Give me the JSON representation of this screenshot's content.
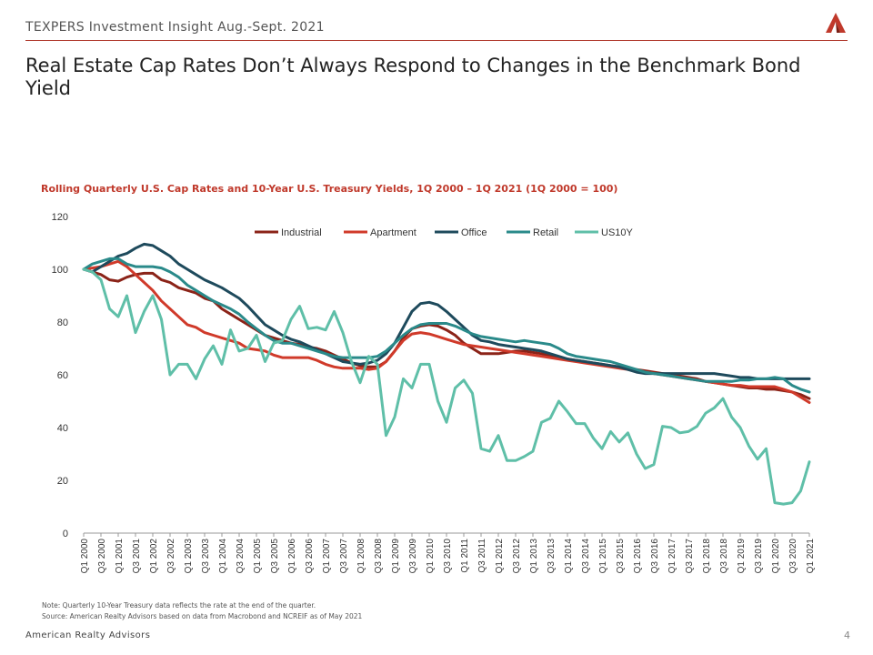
{
  "header": {
    "title": "TEXPERS Investment Insight Aug.-Sept. 2021",
    "logo_icon": "red-a-logo-icon",
    "accent_color": "#b03a2e"
  },
  "slide": {
    "title": "Real Estate Cap Rates Don’t Always Respond to Changes in the Benchmark Bond Yield"
  },
  "chart_data": {
    "type": "line",
    "title": "Rolling Quarterly U.S. Cap Rates and 10-Year U.S. Treasury Yields, 1Q 2000 – 1Q 2021 (1Q 2000 = 100)",
    "xlabel": "",
    "ylabel": "",
    "ylim": [
      0,
      120
    ],
    "yticks": [
      0,
      20,
      40,
      60,
      80,
      100,
      120
    ],
    "grid": false,
    "legend_position": "top-center",
    "x": [
      "Q1 2000",
      "Q2 2000",
      "Q3 2000",
      "Q4 2000",
      "Q1 2001",
      "Q2 2001",
      "Q3 2001",
      "Q4 2001",
      "Q1 2002",
      "Q2 2002",
      "Q3 2002",
      "Q4 2002",
      "Q1 2003",
      "Q2 2003",
      "Q3 2003",
      "Q4 2003",
      "Q1 2004",
      "Q2 2004",
      "Q3 2004",
      "Q4 2004",
      "Q1 2005",
      "Q2 2005",
      "Q3 2005",
      "Q4 2005",
      "Q1 2006",
      "Q2 2006",
      "Q3 2006",
      "Q4 2006",
      "Q1 2007",
      "Q2 2007",
      "Q3 2007",
      "Q4 2007",
      "Q1 2008",
      "Q2 2008",
      "Q3 2008",
      "Q4 2008",
      "Q1 2009",
      "Q2 2009",
      "Q3 2009",
      "Q4 2009",
      "Q1 2010",
      "Q2 2010",
      "Q3 2010",
      "Q4 2010",
      "Q1 2011",
      "Q2 2011",
      "Q3 2011",
      "Q4 2011",
      "Q1 2012",
      "Q2 2012",
      "Q3 2012",
      "Q4 2012",
      "Q1 2013",
      "Q2 2013",
      "Q3 2013",
      "Q4 2013",
      "Q1 2014",
      "Q2 2014",
      "Q3 2014",
      "Q4 2014",
      "Q1 2015",
      "Q2 2015",
      "Q3 2015",
      "Q4 2015",
      "Q1 2016",
      "Q2 2016",
      "Q3 2016",
      "Q4 2016",
      "Q1 2017",
      "Q2 2017",
      "Q3 2017",
      "Q4 2017",
      "Q1 2018",
      "Q2 2018",
      "Q3 2018",
      "Q4 2018",
      "Q1 2019",
      "Q2 2019",
      "Q3 2019",
      "Q4 2019",
      "Q1 2020",
      "Q2 2020",
      "Q3 2020",
      "Q4 2020",
      "Q1 2021"
    ],
    "tick_labels": [
      "Q1 2000",
      "Q3 2000",
      "Q1 2001",
      "Q3 2001",
      "Q1 2002",
      "Q3 2002",
      "Q1 2003",
      "Q3 2003",
      "Q1 2004",
      "Q3 2004",
      "Q1 2005",
      "Q3 2005",
      "Q1 2006",
      "Q3 2006",
      "Q1 2007",
      "Q3 2007",
      "Q1 2008",
      "Q3 2008",
      "Q1 2009",
      "Q3 2009",
      "Q1 2010",
      "Q3 2010",
      "Q1 2011",
      "Q3 2011",
      "Q1 2012",
      "Q3 2012",
      "Q1 2013",
      "Q3 2013",
      "Q1 2014",
      "Q3 2014",
      "Q1 2015",
      "Q3 2015",
      "Q1 2016",
      "Q3 2016",
      "Q1 2017",
      "Q3 2017",
      "Q1 2018",
      "Q3 2018",
      "Q1 2019",
      "Q3 2019",
      "Q1 2020",
      "Q3 2020",
      "Q1 2021"
    ],
    "series": [
      {
        "name": "Industrial",
        "color": "#8b2318",
        "values": [
          100,
          99,
          98,
          96,
          95.5,
          97,
          98,
          98.5,
          98.5,
          96,
          95,
          93,
          92,
          91,
          89,
          88,
          85,
          83,
          81,
          79,
          77,
          75,
          74,
          73,
          72,
          71.5,
          70.5,
          70,
          69,
          67.5,
          66,
          64.5,
          63.5,
          63,
          63,
          65,
          69,
          74,
          77.5,
          78.5,
          79,
          78.5,
          77,
          75,
          72,
          70,
          68,
          68,
          68,
          68.5,
          69,
          69,
          68.5,
          68,
          67,
          66.5,
          66,
          65.5,
          65,
          64.5,
          64,
          63.5,
          63,
          62.5,
          62,
          61.5,
          61,
          60.5,
          60,
          59.5,
          59,
          58.5,
          57.5,
          57,
          56.5,
          56,
          55.5,
          55,
          55,
          54.5,
          54.5,
          54,
          53.5,
          52.5,
          51
        ]
      },
      {
        "name": "Apartment",
        "color": "#d03a2a",
        "values": [
          100,
          100.5,
          101,
          102,
          103,
          101,
          98,
          95,
          92,
          88,
          85,
          82,
          79,
          78,
          76,
          75,
          74,
          73,
          72,
          70,
          69.5,
          69,
          67.5,
          66.5,
          66.5,
          66.5,
          66.5,
          65.5,
          64,
          63,
          62.5,
          62.5,
          62.5,
          62,
          62.5,
          65,
          69,
          73,
          75.5,
          76,
          75.5,
          74.5,
          73.5,
          72.5,
          71.5,
          71,
          70.5,
          70,
          69.5,
          69,
          68.5,
          68,
          67.5,
          67,
          66.5,
          66,
          65.5,
          65,
          64.5,
          64,
          63.5,
          63,
          62.5,
          62,
          61.5,
          61,
          60.5,
          60,
          59.5,
          59,
          58.5,
          58,
          57.5,
          57,
          56.5,
          56,
          56,
          55.5,
          55.5,
          55.5,
          55.5,
          54.5,
          53.5,
          51.5,
          49.5
        ]
      },
      {
        "name": "Office",
        "color": "#1e4a5c",
        "values": [
          100,
          99,
          101,
          103,
          105,
          106,
          108,
          109.5,
          109,
          107,
          105,
          102,
          100,
          98,
          96,
          94.5,
          93,
          91,
          89,
          86,
          82.5,
          79,
          77,
          75,
          73.5,
          72.5,
          71,
          69.5,
          68,
          66.5,
          65,
          64.5,
          64,
          64.5,
          65.5,
          68,
          72,
          78,
          84,
          87,
          87.5,
          86.5,
          84,
          81,
          78,
          75,
          73,
          72.5,
          71.5,
          71,
          70.5,
          70,
          69.5,
          69,
          68,
          67,
          66,
          65.5,
          65,
          64.5,
          64,
          63.5,
          63,
          62,
          61,
          60.5,
          60.5,
          60.5,
          60.5,
          60.5,
          60.5,
          60.5,
          60.5,
          60.5,
          60,
          59.5,
          59,
          59,
          58.5,
          58.5,
          58.5,
          58.5,
          58.5,
          58.5,
          58.5
        ]
      },
      {
        "name": "Retail",
        "color": "#2a8a8a",
        "values": [
          100,
          102,
          103,
          104,
          104,
          102,
          101,
          101,
          101,
          100.5,
          99,
          97,
          94,
          92,
          90,
          88,
          86.5,
          85,
          83,
          80,
          77.5,
          75,
          73,
          72,
          72,
          71,
          70,
          69,
          68,
          67,
          66.5,
          66.5,
          66.5,
          66.5,
          67,
          69,
          72,
          75,
          77.5,
          79,
          79.5,
          79.5,
          79.5,
          78.5,
          77,
          75.5,
          74.5,
          74,
          73.5,
          73,
          72.5,
          73,
          72.5,
          72,
          71.5,
          70,
          68,
          67,
          66.5,
          66,
          65.5,
          65,
          64,
          63,
          62,
          61,
          60.5,
          60,
          59.5,
          59,
          58.5,
          58,
          57.5,
          57.5,
          57.5,
          57.5,
          58,
          58,
          58.5,
          58.5,
          59,
          58.5,
          56,
          54.5,
          53.5
        ]
      },
      {
        "name": "US10Y",
        "color": "#5fbfa8",
        "values": [
          100,
          99,
          96,
          85,
          82,
          90,
          76,
          84,
          90,
          81,
          60,
          64,
          64,
          58.5,
          66,
          71,
          64,
          77,
          69,
          70,
          75,
          65,
          72,
          73,
          81,
          86,
          77.5,
          78,
          77,
          84,
          76,
          65,
          57,
          67,
          64,
          37,
          44,
          58.5,
          55,
          64,
          64,
          50,
          42,
          55,
          58,
          53,
          32,
          31,
          37,
          27.5,
          27.5,
          29,
          31,
          42,
          43.5,
          50,
          46,
          41.5,
          41.5,
          36,
          32,
          38.5,
          34.5,
          38,
          30,
          24.5,
          26,
          40.5,
          40,
          38,
          38.5,
          40.5,
          45.5,
          47.5,
          51,
          44,
          40,
          33,
          28,
          32,
          11.5,
          11,
          11.5,
          16,
          27
        ]
      }
    ]
  },
  "notes": {
    "note": "Note: Quarterly 10-Year Treasury data reflects the rate at the end of the quarter.",
    "source": "Source: American Realty Advisors based on data from Macrobond and NCREIF as of May 2021"
  },
  "footer": {
    "company": "American Realty Advisors",
    "page_number": "4"
  }
}
